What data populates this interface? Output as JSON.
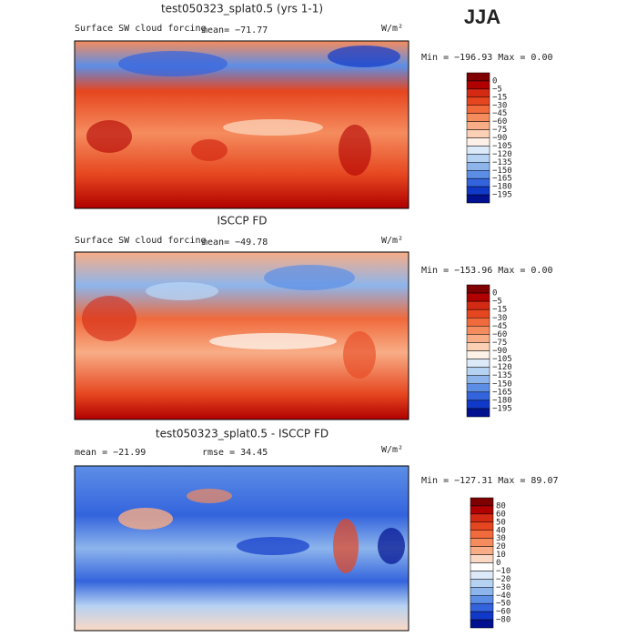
{
  "season": "JJA",
  "panels": [
    {
      "title": "test050323_splat0.5 (yrs 1-1)",
      "left_label": "Surface SW cloud forcing",
      "mean_label": "mean= −71.77",
      "units": "W/m²",
      "min_max": "Min = −196.93 Max =    0.00",
      "colorbar": {
        "labels": [
          "0",
          "−5",
          "−15",
          "−30",
          "−45",
          "−60",
          "−75",
          "−90",
          "−105",
          "−120",
          "−135",
          "−150",
          "−165",
          "−180",
          "−195"
        ],
        "colors": [
          "#7f0000",
          "#b00000",
          "#d42a14",
          "#e6461f",
          "#f06a3c",
          "#f58c5e",
          "#f8ad86",
          "#fbd0b4",
          "#fdf0e6",
          "#dce9f8",
          "#b6d2f2",
          "#8db5ec",
          "#5d8ee6",
          "#3464dd",
          "#1139c9",
          "#00108f"
        ]
      }
    },
    {
      "title": "ISCCP FD",
      "left_label": "Surface SW cloud forcing",
      "mean_label": "mean= −49.78",
      "units": "W/m²",
      "min_max": "Min = −153.96 Max =    0.00",
      "colorbar": {
        "labels": [
          "0",
          "−5",
          "−15",
          "−30",
          "−45",
          "−60",
          "−75",
          "−90",
          "−105",
          "−120",
          "−135",
          "−150",
          "−165",
          "−180",
          "−195"
        ],
        "colors": [
          "#7f0000",
          "#b00000",
          "#d42a14",
          "#e6461f",
          "#f06a3c",
          "#f58c5e",
          "#f8ad86",
          "#fbd0b4",
          "#fdf0e6",
          "#dce9f8",
          "#b6d2f2",
          "#8db5ec",
          "#5d8ee6",
          "#3464dd",
          "#1139c9",
          "#00108f"
        ]
      }
    },
    {
      "title": "test050323_splat0.5 - ISCCP FD",
      "mean_label": "mean = −21.99",
      "rmse_label": "rmse =  34.45",
      "units": "W/m²",
      "min_max": "Min = −127.31 Max =  89.07",
      "colorbar": {
        "labels": [
          "80",
          "60",
          "50",
          "40",
          "30",
          "20",
          "10",
          "0",
          "−10",
          "−20",
          "−30",
          "−40",
          "−50",
          "−60",
          "−80"
        ],
        "colors": [
          "#7f0000",
          "#b00000",
          "#d42a14",
          "#e6461f",
          "#f06a3c",
          "#f58c5e",
          "#f8ad86",
          "#fbd8c4",
          "#ffffff",
          "#dce9f8",
          "#b6d2f2",
          "#8db5ec",
          "#5d8ee6",
          "#3464dd",
          "#1139c9",
          "#00108f"
        ]
      }
    }
  ]
}
